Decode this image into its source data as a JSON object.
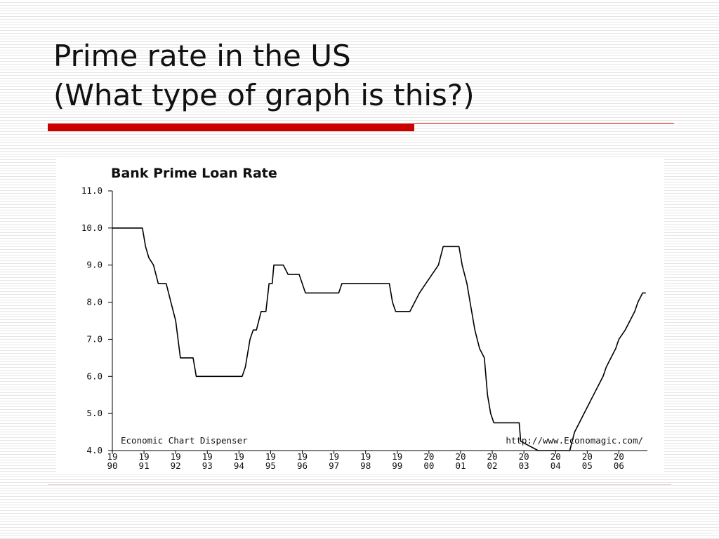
{
  "slide": {
    "title_line1": "Prime rate in the US",
    "title_line2": "(What type of graph is this?)"
  },
  "colors": {
    "accent_red": "#cc0000",
    "line": "#000000"
  },
  "chart_data": {
    "type": "line",
    "title": "Bank Prime Loan Rate",
    "xlabel": "",
    "ylabel": "",
    "ylim": [
      4.0,
      11.0
    ],
    "xlim": [
      1990.0,
      2006.9
    ],
    "y_ticks": [
      "4.0",
      "5.0",
      "6.0",
      "7.0",
      "8.0",
      "9.0",
      "10.0",
      "11.0"
    ],
    "x_ticks": [
      {
        "top": "19",
        "bottom": "90"
      },
      {
        "top": "19",
        "bottom": "91"
      },
      {
        "top": "19",
        "bottom": "92"
      },
      {
        "top": "19",
        "bottom": "93"
      },
      {
        "top": "19",
        "bottom": "94"
      },
      {
        "top": "19",
        "bottom": "95"
      },
      {
        "top": "19",
        "bottom": "96"
      },
      {
        "top": "19",
        "bottom": "97"
      },
      {
        "top": "19",
        "bottom": "98"
      },
      {
        "top": "19",
        "bottom": "99"
      },
      {
        "top": "20",
        "bottom": "00"
      },
      {
        "top": "20",
        "bottom": "01"
      },
      {
        "top": "20",
        "bottom": "02"
      },
      {
        "top": "20",
        "bottom": "03"
      },
      {
        "top": "20",
        "bottom": "04"
      },
      {
        "top": "20",
        "bottom": "05"
      },
      {
        "top": "20",
        "bottom": "06"
      }
    ],
    "annotations": {
      "left": "Economic Chart Dispenser",
      "right": "http://www.Economagic.com/"
    },
    "grid": false,
    "series": [
      {
        "points": [
          [
            1990.0,
            10.0
          ],
          [
            1990.95,
            10.0
          ],
          [
            1991.05,
            9.5
          ],
          [
            1991.15,
            9.2
          ],
          [
            1991.3,
            9.0
          ],
          [
            1991.45,
            8.5
          ],
          [
            1991.7,
            8.5
          ],
          [
            1991.85,
            8.0
          ],
          [
            1992.0,
            7.5
          ],
          [
            1992.15,
            6.5
          ],
          [
            1992.55,
            6.5
          ],
          [
            1992.65,
            6.0
          ],
          [
            1994.1,
            6.0
          ],
          [
            1994.2,
            6.25
          ],
          [
            1994.35,
            7.0
          ],
          [
            1994.45,
            7.25
          ],
          [
            1994.55,
            7.25
          ],
          [
            1994.7,
            7.75
          ],
          [
            1994.85,
            7.75
          ],
          [
            1994.95,
            8.5
          ],
          [
            1995.05,
            8.5
          ],
          [
            1995.1,
            9.0
          ],
          [
            1995.4,
            9.0
          ],
          [
            1995.55,
            8.75
          ],
          [
            1995.9,
            8.75
          ],
          [
            1996.0,
            8.5
          ],
          [
            1996.1,
            8.25
          ],
          [
            1997.15,
            8.25
          ],
          [
            1997.25,
            8.5
          ],
          [
            1998.75,
            8.5
          ],
          [
            1998.85,
            8.0
          ],
          [
            1998.95,
            7.75
          ],
          [
            1999.4,
            7.75
          ],
          [
            1999.55,
            8.0
          ],
          [
            1999.7,
            8.25
          ],
          [
            1999.9,
            8.5
          ],
          [
            2000.1,
            8.75
          ],
          [
            2000.3,
            9.0
          ],
          [
            2000.45,
            9.5
          ],
          [
            2000.95,
            9.5
          ],
          [
            2001.05,
            9.0
          ],
          [
            2001.2,
            8.5
          ],
          [
            2001.3,
            8.0
          ],
          [
            2001.45,
            7.25
          ],
          [
            2001.6,
            6.75
          ],
          [
            2001.75,
            6.5
          ],
          [
            2001.85,
            5.5
          ],
          [
            2001.95,
            5.0
          ],
          [
            2002.05,
            4.75
          ],
          [
            2002.85,
            4.75
          ],
          [
            2002.9,
            4.25
          ],
          [
            2003.45,
            4.0
          ],
          [
            2004.45,
            4.0
          ],
          [
            2004.6,
            4.5
          ],
          [
            2004.75,
            4.75
          ],
          [
            2004.9,
            5.0
          ],
          [
            2005.05,
            5.25
          ],
          [
            2005.2,
            5.5
          ],
          [
            2005.35,
            5.75
          ],
          [
            2005.5,
            6.0
          ],
          [
            2005.6,
            6.25
          ],
          [
            2005.75,
            6.5
          ],
          [
            2005.9,
            6.75
          ],
          [
            2006.0,
            7.0
          ],
          [
            2006.2,
            7.25
          ],
          [
            2006.35,
            7.5
          ],
          [
            2006.5,
            7.75
          ],
          [
            2006.6,
            8.0
          ],
          [
            2006.75,
            8.25
          ],
          [
            2006.85,
            8.25
          ]
        ]
      }
    ]
  }
}
